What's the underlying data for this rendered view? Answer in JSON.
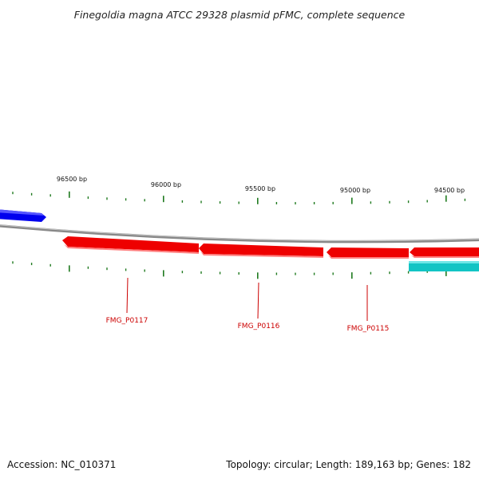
{
  "title": "Finegoldia magna ATCC 29328 plasmid pFMC, complete sequence",
  "footer": {
    "accession": "Accession: NC_010371",
    "summary": "Topology: circular; Length: 189,163 bp; Genes: 182"
  },
  "colors": {
    "backbone": "#8a8a8a",
    "gene_red": "#ff0000",
    "gene_blue": "#0000ff",
    "gene_cyan": "#14c8c8",
    "tick": "#1f7a1f",
    "label_line": "#cc0000"
  },
  "coordinate_labels": [
    {
      "text": "96500 bp",
      "bp": 96500
    },
    {
      "text": "96000 bp",
      "bp": 96000
    },
    {
      "text": "95500 bp",
      "bp": 95500
    },
    {
      "text": "95000 bp",
      "bp": 95000
    },
    {
      "text": "94500 bp",
      "bp": 94500
    }
  ],
  "genes": [
    {
      "name": "FMG_P0117",
      "color": "red",
      "strand": "reverse",
      "labeled": true
    },
    {
      "name": "FMG_P0116",
      "color": "red",
      "strand": "reverse",
      "labeled": true
    },
    {
      "name": "FMG_P0115",
      "color": "red",
      "strand": "reverse",
      "labeled": true
    },
    {
      "name": "",
      "color": "red",
      "strand": "reverse",
      "labeled": false
    },
    {
      "name": "",
      "color": "blue",
      "strand": "forward",
      "labeled": false
    },
    {
      "name": "",
      "color": "cyan",
      "strand": "reverse",
      "labeled": false
    }
  ]
}
